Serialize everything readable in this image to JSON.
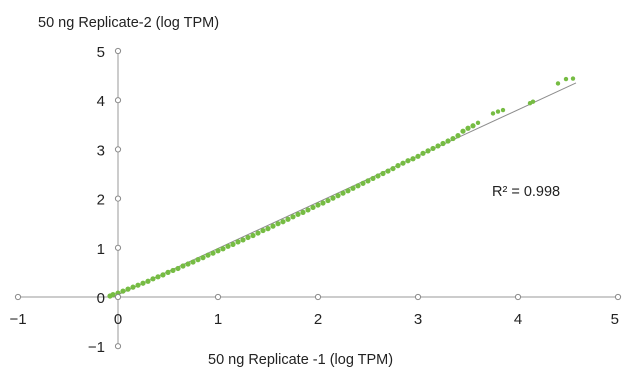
{
  "chart_data": {
    "type": "scatter",
    "xlabel": "50 ng Replicate -1 (log TPM)",
    "ylabel": "50 ng Replicate-2 (log TPM)",
    "xlim": [
      -1,
      5
    ],
    "ylim": [
      -1,
      5
    ],
    "xticks": [
      "−1",
      "0",
      "1",
      "2",
      "3",
      "4",
      "5"
    ],
    "xtick_values": [
      -1,
      0,
      1,
      2,
      3,
      4,
      5
    ],
    "yticks": [
      "−1",
      "0",
      "1",
      "2",
      "3",
      "4",
      "5"
    ],
    "ytick_values": [
      -1,
      0,
      1,
      2,
      3,
      4,
      5
    ],
    "grid": false,
    "annotation": "R² = 0.998",
    "point_color": "#76bc43",
    "fit_line_color": "#8c8c8c",
    "fit_line": {
      "x": [
        -0.05,
        4.58
      ],
      "y": [
        0.0,
        4.35
      ]
    },
    "series": [
      {
        "x": [
          -0.08,
          -0.05,
          0.0,
          0.05,
          0.1,
          0.15,
          0.2,
          0.25,
          0.3,
          0.35,
          0.4,
          0.45,
          0.5,
          0.55,
          0.6,
          0.65,
          0.7,
          0.75,
          0.8,
          0.85,
          0.9,
          0.95,
          1.0,
          1.05,
          1.1,
          1.15,
          1.2,
          1.25,
          1.3,
          1.35,
          1.4,
          1.45,
          1.5,
          1.55,
          1.6,
          1.65,
          1.7,
          1.75,
          1.8,
          1.85,
          1.9,
          1.95,
          2.0,
          2.05,
          2.1,
          2.15,
          2.2,
          2.25,
          2.3,
          2.35,
          2.4,
          2.45,
          2.5,
          2.55,
          2.6,
          2.65,
          2.7,
          2.75,
          2.8,
          2.85,
          2.9,
          2.95,
          3.0,
          3.05,
          3.1,
          3.15,
          3.2,
          3.25,
          3.3,
          3.35,
          3.4,
          3.45,
          3.5,
          3.55,
          3.6,
          3.75,
          3.8,
          3.85,
          4.12,
          4.15,
          4.4,
          4.48,
          4.55
        ],
        "y": [
          0.02,
          0.05,
          0.08,
          0.12,
          0.16,
          0.2,
          0.24,
          0.28,
          0.32,
          0.37,
          0.41,
          0.45,
          0.5,
          0.54,
          0.58,
          0.63,
          0.67,
          0.71,
          0.76,
          0.8,
          0.85,
          0.89,
          0.94,
          0.98,
          1.03,
          1.07,
          1.12,
          1.16,
          1.21,
          1.25,
          1.3,
          1.35,
          1.39,
          1.44,
          1.49,
          1.53,
          1.58,
          1.63,
          1.68,
          1.72,
          1.77,
          1.82,
          1.87,
          1.91,
          1.96,
          2.01,
          2.06,
          2.11,
          2.16,
          2.21,
          2.26,
          2.31,
          2.36,
          2.41,
          2.46,
          2.51,
          2.56,
          2.61,
          2.67,
          2.72,
          2.77,
          2.81,
          2.86,
          2.92,
          2.97,
          3.02,
          3.07,
          3.12,
          3.17,
          3.22,
          3.28,
          3.37,
          3.43,
          3.48,
          3.54,
          3.73,
          3.77,
          3.8,
          3.94,
          3.97,
          4.34,
          4.43,
          4.44
        ]
      }
    ]
  }
}
